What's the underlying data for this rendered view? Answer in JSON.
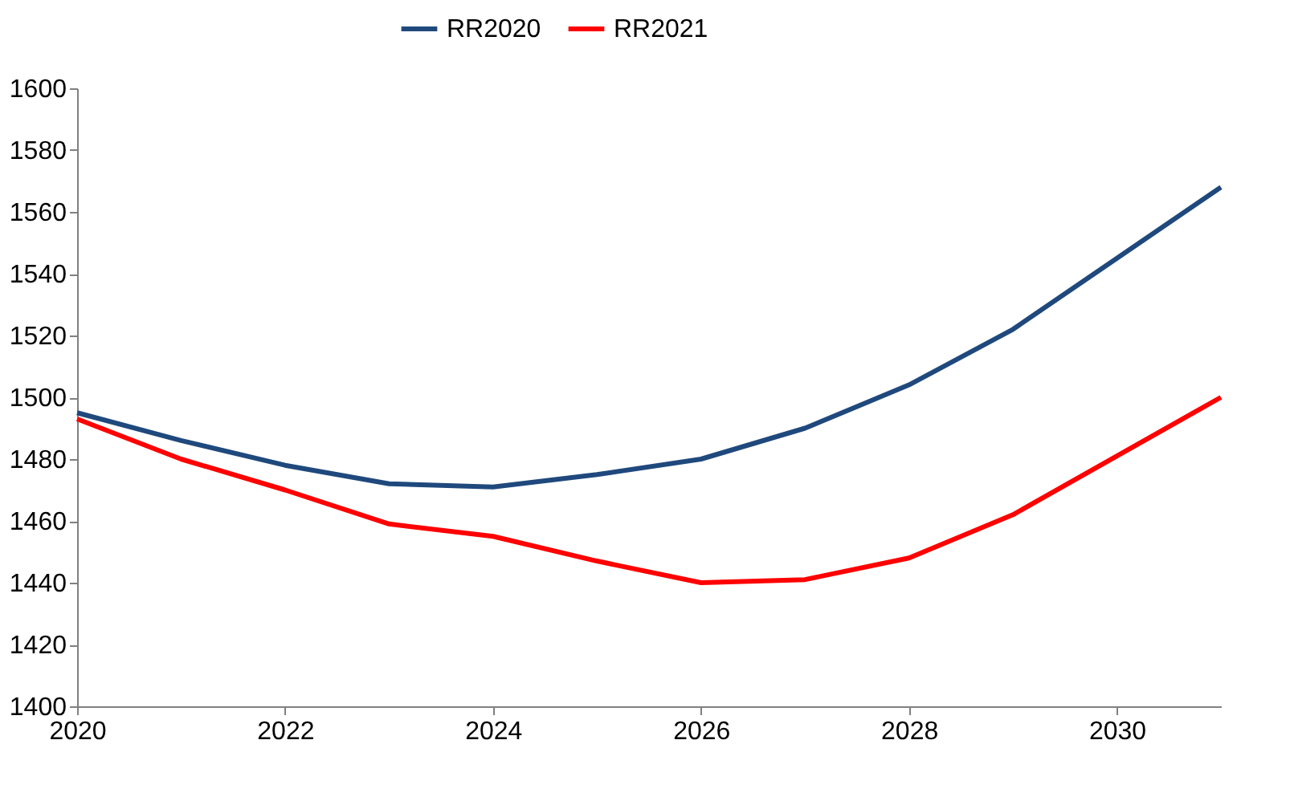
{
  "chart_data": {
    "type": "line",
    "x": [
      2020,
      2021,
      2022,
      2023,
      2024,
      2025,
      2026,
      2027,
      2028,
      2029,
      2030,
      2031
    ],
    "series": [
      {
        "name": "RR2020",
        "color": "#1f497d",
        "values": [
          1495,
          1486,
          1478,
          1472,
          1471,
          1475,
          1480,
          1490,
          1504,
          1522,
          1545,
          1568
        ]
      },
      {
        "name": "RR2021",
        "color": "#ff0000",
        "values": [
          1493,
          1480,
          1470,
          1459,
          1455,
          1447,
          1440,
          1441,
          1448,
          1462,
          1481,
          1500
        ]
      }
    ],
    "xlim": [
      2020,
      2031
    ],
    "xticks": [
      2020,
      2022,
      2024,
      2026,
      2028,
      2030
    ],
    "ylim": [
      1400,
      1600
    ],
    "yticks": [
      1400,
      1420,
      1440,
      1460,
      1480,
      1500,
      1520,
      1540,
      1560,
      1580,
      1600
    ],
    "grid": false,
    "legend": "top",
    "marker": "none",
    "line_style": "solid"
  }
}
